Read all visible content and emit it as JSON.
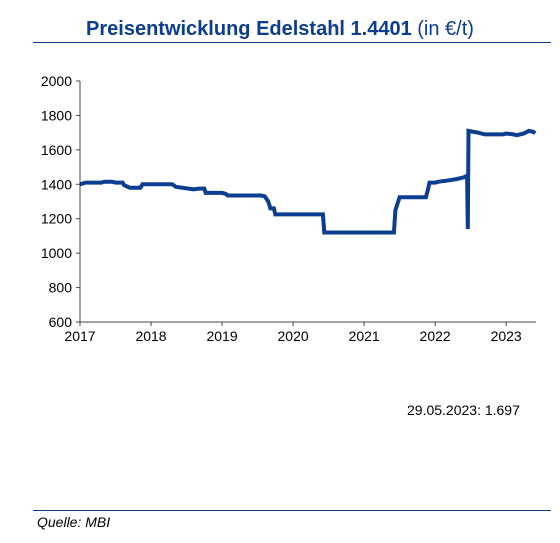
{
  "title": {
    "main": "Preisentwicklung Edelstahl 1.4401",
    "unit": " (in €/t)"
  },
  "note": "29.05.2023: 1.697",
  "source": "Quelle: MBI",
  "colors": {
    "line": "#0b3d91",
    "accent": "#0b3d91",
    "axis": "#444444"
  },
  "chart_data": {
    "type": "line",
    "title": "Preisentwicklung Edelstahl 1.4401 (in €/t)",
    "xlabel": "",
    "ylabel": "",
    "xlim": [
      2017.0,
      2023.42
    ],
    "ylim": [
      600,
      2000
    ],
    "grid": false,
    "legend": "none",
    "x_ticks": [
      2017,
      2018,
      2019,
      2020,
      2021,
      2022,
      2023
    ],
    "x_tick_labels": [
      "2017",
      "2018",
      "2019",
      "2020",
      "2021",
      "2022",
      "2023"
    ],
    "y_ticks": [
      600,
      800,
      1000,
      1200,
      1400,
      1600,
      1800,
      2000
    ],
    "y_tick_labels": [
      "600",
      "800",
      "1000",
      "1200",
      "1400",
      "1600",
      "1800",
      "2000"
    ],
    "series": [
      {
        "values": [
          [
            2017.0,
            1400
          ],
          [
            2017.08,
            1410
          ],
          [
            2017.3,
            1410
          ],
          [
            2017.35,
            1415
          ],
          [
            2017.45,
            1415
          ],
          [
            2017.5,
            1410
          ],
          [
            2017.6,
            1410
          ],
          [
            2017.62,
            1395
          ],
          [
            2017.7,
            1380
          ],
          [
            2017.85,
            1380
          ],
          [
            2017.88,
            1400
          ],
          [
            2018.3,
            1400
          ],
          [
            2018.35,
            1385
          ],
          [
            2018.6,
            1370
          ],
          [
            2018.68,
            1375
          ],
          [
            2018.75,
            1375
          ],
          [
            2018.77,
            1350
          ],
          [
            2019.0,
            1350
          ],
          [
            2019.05,
            1345
          ],
          [
            2019.08,
            1335
          ],
          [
            2019.55,
            1335
          ],
          [
            2019.6,
            1330
          ],
          [
            2019.65,
            1300
          ],
          [
            2019.68,
            1260
          ],
          [
            2019.73,
            1260
          ],
          [
            2019.75,
            1225
          ],
          [
            2020.42,
            1225
          ],
          [
            2020.44,
            1120
          ],
          [
            2021.42,
            1120
          ],
          [
            2021.44,
            1250
          ],
          [
            2021.5,
            1325
          ],
          [
            2021.87,
            1325
          ],
          [
            2021.9,
            1370
          ],
          [
            2021.92,
            1410
          ],
          [
            2022.0,
            1410
          ],
          [
            2022.05,
            1415
          ],
          [
            2022.15,
            1420
          ],
          [
            2022.3,
            1430
          ],
          [
            2022.4,
            1440
          ],
          [
            2022.45,
            1450
          ],
          [
            2022.46,
            1140
          ],
          [
            2022.47,
            1710
          ],
          [
            2022.6,
            1700
          ],
          [
            2022.7,
            1690
          ],
          [
            2022.85,
            1690
          ],
          [
            2022.95,
            1690
          ],
          [
            2023.0,
            1695
          ],
          [
            2023.1,
            1690
          ],
          [
            2023.15,
            1685
          ],
          [
            2023.25,
            1695
          ],
          [
            2023.32,
            1710
          ],
          [
            2023.38,
            1705
          ],
          [
            2023.41,
            1697
          ]
        ]
      }
    ]
  }
}
